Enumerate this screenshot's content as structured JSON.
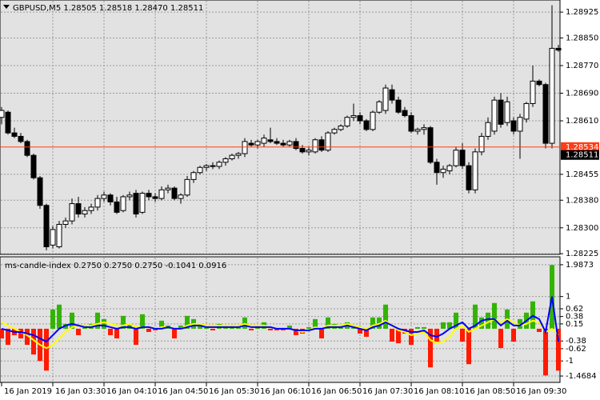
{
  "chart_data": [
    {
      "type": "candlestick",
      "title": "GBPUSD,M5  1.28505 1.28518 1.28470 1.28511",
      "categories": [
        "16 Jan 2019",
        null,
        null,
        null,
        null,
        null,
        null,
        null,
        "16 Jan 03:30",
        null,
        null,
        null,
        null,
        null,
        null,
        null,
        "16 Jan 04:10",
        null,
        null,
        null,
        null,
        null,
        null,
        null,
        "16 Jan 04:50",
        null,
        null,
        null,
        null,
        null,
        null,
        null,
        "16 Jan 05:30",
        null,
        null,
        null,
        null,
        null,
        null,
        null,
        "16 Jan 06:10",
        null,
        null,
        null,
        null,
        null,
        null,
        null,
        "16 Jan 06:50",
        null,
        null,
        null,
        null,
        null,
        null,
        null,
        "16 Jan 07:30",
        null,
        null,
        null,
        null,
        null,
        null,
        null,
        "16 Jan 08:10",
        null,
        null,
        null,
        null,
        null,
        null,
        null,
        "16 Jan 08:50",
        null,
        null,
        null,
        null,
        null,
        null,
        null,
        "16 Jan 09:30",
        null,
        null,
        null,
        null,
        null,
        null,
        null
      ],
      "open": [
        1.2862,
        1.28635,
        1.28575,
        1.28565,
        1.2855,
        1.2851,
        1.28445,
        1.28365,
        1.2825,
        1.28245,
        1.2831,
        1.2832,
        1.2837,
        1.2834,
        1.2835,
        1.2836,
        1.28385,
        1.28395,
        1.28375,
        1.2835,
        1.2839,
        1.284,
        1.28345,
        1.284,
        1.2839,
        1.28385,
        1.2841,
        1.28415,
        1.28385,
        1.28395,
        1.2844,
        1.2846,
        1.28475,
        1.2848,
        1.28478,
        1.2849,
        1.285,
        1.2851,
        1.28515,
        1.28545,
        1.2854,
        1.28545,
        1.28555,
        1.2855,
        1.28545,
        1.2854,
        1.2855,
        1.2853,
        1.2852,
        1.2852,
        1.28555,
        1.28525,
        1.28575,
        1.28585,
        1.28595,
        1.2862,
        1.28625,
        1.2861,
        1.28585,
        1.28635,
        1.2864,
        1.287,
        1.2867,
        1.2864,
        1.28625,
        1.2858,
        1.28585,
        1.2859,
        1.2849,
        1.2846,
        1.28465,
        1.2848,
        1.28525,
        1.2848,
        1.2841,
        1.2852,
        1.28565,
        1.2858,
        1.2867,
        1.28605,
        1.2861,
        1.2858,
        1.28615,
        1.2866,
        1.28725,
        1.28715,
        1.28545,
        1.2882
      ],
      "high": [
        1.2865,
        1.2864,
        1.2859,
        1.28575,
        1.28555,
        1.28515,
        1.2845,
        1.2837,
        1.28305,
        1.2832,
        1.2833,
        1.28385,
        1.2839,
        1.2836,
        1.2837,
        1.28395,
        1.28405,
        1.284,
        1.2839,
        1.28395,
        1.28405,
        1.2841,
        1.28405,
        1.2841,
        1.284,
        1.2842,
        1.28425,
        1.2842,
        1.284,
        1.2845,
        1.28465,
        1.2848,
        1.28485,
        1.2849,
        1.28495,
        1.28505,
        1.28515,
        1.2852,
        1.2856,
        1.28555,
        1.28555,
        1.2857,
        1.2859,
        1.2856,
        1.28555,
        1.28555,
        1.2856,
        1.2854,
        1.28535,
        1.2856,
        1.28565,
        1.2858,
        1.2859,
        1.286,
        1.28625,
        1.2866,
        1.28635,
        1.28615,
        1.2864,
        1.2867,
        1.28715,
        1.28715,
        1.2868,
        1.2865,
        1.28635,
        1.2859,
        1.286,
        1.28595,
        1.285,
        1.2848,
        1.28485,
        1.28535,
        1.28545,
        1.2849,
        1.2853,
        1.28575,
        1.2862,
        1.2868,
        1.2869,
        1.2868,
        1.2862,
        1.2863,
        1.28665,
        1.2877,
        1.2873,
        1.2872,
        1.28945,
        1.2883
      ],
      "low": [
        1.286,
        1.2857,
        1.2856,
        1.28545,
        1.28505,
        1.2844,
        1.28355,
        1.28235,
        1.2824,
        1.2824,
        1.283,
        1.2831,
        1.2833,
        1.2833,
        1.2834,
        1.2835,
        1.28375,
        1.28365,
        1.2834,
        1.28345,
        1.2838,
        1.2833,
        1.2834,
        1.2838,
        1.28375,
        1.2838,
        1.284,
        1.2838,
        1.2837,
        1.2839,
        1.2843,
        1.28455,
        1.28465,
        1.2847,
        1.2847,
        1.2848,
        1.28495,
        1.285,
        1.28505,
        1.28535,
        1.2853,
        1.28535,
        1.28545,
        1.2854,
        1.28535,
        1.28535,
        1.28525,
        1.28515,
        1.2851,
        1.28515,
        1.2852,
        1.2852,
        1.2857,
        1.2858,
        1.2859,
        1.2861,
        1.286,
        1.2858,
        1.2858,
        1.2863,
        1.2863,
        1.2866,
        1.2863,
        1.2862,
        1.28575,
        1.2857,
        1.2857,
        1.28485,
        1.28425,
        1.28445,
        1.28455,
        1.28475,
        1.2847,
        1.284,
        1.284,
        1.2851,
        1.28555,
        1.2857,
        1.2859,
        1.28595,
        1.2857,
        1.285,
        1.28605,
        1.2865,
        1.2871,
        1.2853,
        1.2853,
        1.2881
      ],
      "close": [
        1.2864,
        1.28575,
        1.28565,
        1.2855,
        1.2851,
        1.28445,
        1.28365,
        1.28245,
        1.28295,
        1.2831,
        1.2832,
        1.2837,
        1.2834,
        1.2835,
        1.2836,
        1.28385,
        1.28395,
        1.28375,
        1.28345,
        1.2839,
        1.28395,
        1.2834,
        1.284,
        1.2839,
        1.28385,
        1.2841,
        1.28415,
        1.28385,
        1.28395,
        1.2844,
        1.2846,
        1.28475,
        1.2848,
        1.28478,
        1.2849,
        1.285,
        1.2851,
        1.28515,
        1.2855,
        1.2854,
        1.2855,
        1.2856,
        1.2855,
        1.28545,
        1.2854,
        1.2855,
        1.2853,
        1.2852,
        1.28525,
        1.28555,
        1.28525,
        1.28575,
        1.28585,
        1.28595,
        1.2862,
        1.28625,
        1.2861,
        1.28585,
        1.28635,
        1.28665,
        1.28705,
        1.2867,
        1.28635,
        1.28625,
        1.2858,
        1.28585,
        1.2859,
        1.2849,
        1.2846,
        1.2847,
        1.2848,
        1.28525,
        1.2848,
        1.2841,
        1.2852,
        1.28565,
        1.28605,
        1.2867,
        1.286,
        1.28665,
        1.2858,
        1.2862,
        1.2866,
        1.28725,
        1.28715,
        1.28545,
        1.2882,
        1.28815
      ],
      "ylim": [
        1.28223,
        1.2896
      ],
      "yticks": [
        1.28925,
        {
          "value": 1.2885,
          "label": "1.28850"
        },
        {
          "value": 1.2877,
          "label": "1.28770"
        },
        {
          "value": 1.2869,
          "label": "1.28690"
        },
        {
          "value": 1.2861,
          "label": "1.28610"
        },
        1.28455,
        {
          "value": 1.2838,
          "label": "1.28380"
        },
        {
          "value": 1.283,
          "label": "1.28300"
        },
        1.28225
      ],
      "price_lines": [
        {
          "value": 1.28534,
          "color": "#ff3c14"
        },
        {
          "value": 1.28511,
          "color": "#000000"
        }
      ],
      "grid": true
    },
    {
      "type": "bar",
      "title": "ms-candle-index 0.2750 0.2750 0.2750 -0.1041 0.0916",
      "values": [
        -0.3,
        -0.5,
        -0.2,
        -0.3,
        -0.5,
        -0.8,
        -1.0,
        -1.3,
        0.6,
        0.75,
        0.15,
        0.5,
        -0.2,
        0.1,
        0.15,
        0.5,
        0.3,
        -0.2,
        -0.3,
        0.4,
        0.15,
        -0.5,
        0.45,
        -0.1,
        -0.05,
        0.25,
        0.1,
        -0.3,
        0.1,
        0.4,
        0.3,
        0.15,
        0.05,
        -0.05,
        0.15,
        0.1,
        0.1,
        0.05,
        0.35,
        -0.05,
        0.1,
        0.2,
        -0.05,
        -0.05,
        -0.05,
        0.1,
        -0.2,
        -0.15,
        0.05,
        0.3,
        -0.3,
        0.35,
        0.15,
        0.1,
        0.2,
        0.05,
        -0.15,
        -0.25,
        0.35,
        0.35,
        0.75,
        -0.4,
        -0.45,
        -0.15,
        -0.5,
        0.05,
        0.05,
        -1.2,
        -0.4,
        0.2,
        0.2,
        0.5,
        -0.4,
        -1.1,
        0.75,
        0.35,
        0.5,
        0.8,
        -0.6,
        0.6,
        -0.4,
        0.3,
        0.5,
        0.85,
        -0.1,
        -1.45,
        1.98,
        -1.3
      ],
      "color_up": "#33b400",
      "color_down": "#ff1a00",
      "series": [
        {
          "color": "#ffff00",
          "values": [
            0.2,
            0.1,
            0.0,
            -0.1,
            -0.2,
            -0.35,
            -0.5,
            -0.6,
            -0.5,
            -0.3,
            -0.1,
            0.05,
            0.1,
            0.1,
            0.1,
            0.15,
            0.2,
            0.15,
            0.1,
            0.1,
            0.15,
            0.05,
            0.05,
            0.05,
            0.0,
            0.05,
            0.05,
            0.0,
            0.0,
            0.1,
            0.15,
            0.15,
            0.1,
            0.1,
            0.1,
            0.1,
            0.1,
            0.1,
            0.15,
            0.1,
            0.1,
            0.1,
            0.05,
            0.0,
            0.0,
            0.0,
            -0.05,
            -0.1,
            -0.05,
            0.05,
            0.0,
            0.1,
            0.1,
            0.1,
            0.15,
            0.1,
            0.05,
            0.0,
            0.1,
            0.15,
            0.25,
            0.1,
            -0.05,
            -0.1,
            -0.2,
            -0.15,
            -0.1,
            -0.35,
            -0.45,
            -0.4,
            -0.25,
            0.0,
            0.1,
            -0.1,
            0.0,
            0.1,
            0.2,
            0.3,
            0.2,
            0.3,
            0.2,
            0.1,
            0.15,
            0.25,
            0.2,
            -0.1,
            0.0,
            -0.2
          ]
        },
        {
          "color": "#0000ff",
          "values": [
            0.0,
            -0.05,
            -0.1,
            -0.1,
            -0.15,
            -0.2,
            -0.3,
            -0.4,
            -0.2,
            0.0,
            0.1,
            0.15,
            0.1,
            0.05,
            0.05,
            0.1,
            0.1,
            0.05,
            0.0,
            0.05,
            0.05,
            0.0,
            0.05,
            0.05,
            0.0,
            0.0,
            0.05,
            0.0,
            0.0,
            0.05,
            0.1,
            0.1,
            0.05,
            0.05,
            0.05,
            0.05,
            0.05,
            0.05,
            0.1,
            0.05,
            0.05,
            0.05,
            0.05,
            0.0,
            0.0,
            0.0,
            -0.05,
            -0.05,
            -0.05,
            0.0,
            0.0,
            0.05,
            0.05,
            0.05,
            0.1,
            0.05,
            0.0,
            -0.05,
            0.05,
            0.1,
            0.2,
            0.1,
            0.0,
            -0.05,
            -0.1,
            -0.1,
            -0.05,
            -0.2,
            -0.25,
            -0.15,
            0.0,
            0.1,
            0.2,
            0.0,
            0.1,
            0.25,
            0.3,
            0.3,
            0.1,
            0.25,
            0.1,
            0.1,
            0.25,
            0.4,
            0.3,
            -0.1,
            1.0,
            -0.4
          ]
        }
      ],
      "ylim": [
        -1.666,
        2.234
      ],
      "yticks": [
        1.9873,
        1,
        0.62,
        0.38,
        0.15,
        -0.38,
        -0.62,
        -1,
        -1.4684
      ],
      "grid": true
    }
  ]
}
